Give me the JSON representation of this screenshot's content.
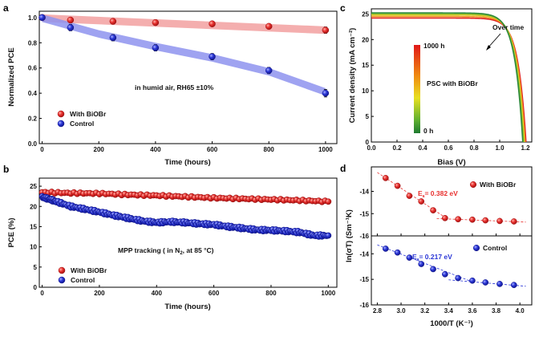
{
  "colors": {
    "red": "#e8312f",
    "blue": "#2a36d6",
    "red_band": "#f2a0a0",
    "blue_band": "#8e93ee"
  },
  "chart_data": [
    {
      "panel": "a",
      "type": "scatter",
      "xlabel": "Time (hours)",
      "ylabel": "Normalized PCE",
      "xlim": [
        -10,
        1040
      ],
      "ylim": [
        0,
        1.05
      ],
      "xticks": [
        0,
        200,
        400,
        600,
        800,
        1000
      ],
      "yticks": [
        0.0,
        0.2,
        0.4,
        0.6,
        0.8,
        1.0
      ],
      "annotation": "in humid air,  RH65 ±10%",
      "legend_position": "bottom-left",
      "series": [
        {
          "name": "With BiOBr",
          "color": "red",
          "x": [
            0,
            100,
            250,
            400,
            600,
            800,
            1000
          ],
          "y": [
            1.0,
            0.98,
            0.97,
            0.96,
            0.95,
            0.93,
            0.9
          ],
          "err": [
            0.02,
            0.02,
            0.02,
            0.02,
            0.02,
            0.02,
            0.025
          ],
          "band": {
            "x": [
              0,
              1000
            ],
            "center": [
              0.995,
              0.9
            ],
            "width": 0.06
          }
        },
        {
          "name": "Control",
          "color": "blue",
          "x": [
            0,
            100,
            250,
            400,
            600,
            800,
            1000
          ],
          "y": [
            1.0,
            0.92,
            0.84,
            0.76,
            0.69,
            0.58,
            0.4
          ],
          "err": [
            0.02,
            0.025,
            0.025,
            0.025,
            0.025,
            0.025,
            0.03
          ],
          "band": {
            "x": [
              0,
              200,
              400,
              600,
              800,
              1000
            ],
            "center": [
              0.995,
              0.87,
              0.77,
              0.68,
              0.57,
              0.41
            ],
            "width": 0.06
          }
        }
      ]
    },
    {
      "panel": "b",
      "type": "scatter",
      "xlabel": "Time (hours)",
      "ylabel": "PCE (%)",
      "xlim": [
        -10,
        1030
      ],
      "ylim": [
        0,
        27
      ],
      "xticks": [
        0,
        200,
        400,
        600,
        800,
        1000
      ],
      "yticks": [
        0,
        5,
        10,
        15,
        20,
        25
      ],
      "annotation_parts": [
        "MPP  tracking  ( in N",
        "2",
        ", at 85 °C)"
      ],
      "legend_position": "bottom-left",
      "series": [
        {
          "name": "With BiOBr",
          "color": "red",
          "x": [
            0,
            100,
            200,
            300,
            400,
            500,
            600,
            700,
            800,
            900,
            1000
          ],
          "y": [
            23.5,
            23.3,
            23.2,
            22.9,
            22.7,
            22.4,
            22.1,
            21.9,
            21.7,
            21.5,
            21.2
          ]
        },
        {
          "name": "Control",
          "color": "blue",
          "x": [
            0,
            25,
            50,
            100,
            150,
            200,
            250,
            300,
            350,
            400,
            450,
            500,
            550,
            600,
            650,
            700,
            750,
            800,
            850,
            900,
            950,
            1000
          ],
          "y": [
            22.3,
            21.8,
            21.2,
            20.0,
            19.3,
            18.6,
            17.8,
            17.1,
            16.4,
            16.0,
            16.2,
            16.0,
            15.7,
            15.5,
            15.0,
            14.6,
            14.2,
            14.1,
            13.9,
            13.6,
            12.8,
            12.8
          ]
        }
      ]
    },
    {
      "panel": "c",
      "type": "line",
      "xlabel": "Bias (V)",
      "ylabel": "Current density (mA cm⁻²)",
      "xlim": [
        0,
        1.25
      ],
      "ylim": [
        0,
        26
      ],
      "xticks": [
        0.0,
        0.2,
        0.4,
        0.6,
        0.8,
        1.0,
        1.2
      ],
      "yticks": [
        0,
        5,
        10,
        15,
        20,
        25
      ],
      "annotation": "Over time",
      "colorbar": {
        "title": "PSC with BiOBr",
        "top_label": "1000 h",
        "bottom_label": "0 h"
      },
      "series": [
        {
          "color": "#e02020",
          "jsc": 24.2,
          "voc": 1.205
        },
        {
          "color": "#f09020",
          "jsc": 24.5,
          "voc": 1.198
        },
        {
          "color": "#d8c820",
          "jsc": 24.8,
          "voc": 1.192
        },
        {
          "color": "#8cc030",
          "jsc": 25.0,
          "voc": 1.186
        },
        {
          "color": "#2e8a3a",
          "jsc": 25.2,
          "voc": 1.18
        }
      ]
    },
    {
      "panel": "d",
      "type": "scatter",
      "xlabel": "1000/T (K⁻¹)",
      "xlim": [
        2.75,
        4.1
      ],
      "xticks": [
        2.8,
        3.0,
        3.2,
        3.4,
        3.6,
        3.8,
        4.0
      ],
      "subplots": [
        {
          "name": "With BiOBr",
          "color": "red",
          "ylabel": "ln(σT) (Sm⁻¹K)",
          "ylim": [
            -16.0,
            -12.9
          ],
          "yticks": [
            -16,
            -15,
            -14
          ],
          "ea_label": "= 0.382 eV",
          "x": [
            2.87,
            2.97,
            3.07,
            3.17,
            3.27,
            3.37,
            3.48,
            3.6,
            3.71,
            3.83,
            3.95
          ],
          "y": [
            -13.4,
            -13.75,
            -14.2,
            -14.45,
            -14.85,
            -15.2,
            -15.25,
            -15.27,
            -15.3,
            -15.33,
            -15.35
          ],
          "fit1": {
            "x": [
              2.8,
              3.38
            ],
            "y": [
              -13.15,
              -15.2
            ]
          },
          "fit2": {
            "x": [
              3.3,
              4.05
            ],
            "y": [
              -15.22,
              -15.38
            ]
          }
        },
        {
          "name": "Control",
          "color": "blue",
          "ylim": [
            -16.0,
            -13.3
          ],
          "yticks": [
            -16,
            -15,
            -14
          ],
          "ea_label": "= 0.217 eV",
          "x": [
            2.87,
            2.97,
            3.07,
            3.17,
            3.27,
            3.37,
            3.48,
            3.6,
            3.71,
            3.83,
            3.95
          ],
          "y": [
            -13.8,
            -13.95,
            -14.15,
            -14.4,
            -14.6,
            -14.8,
            -14.95,
            -15.05,
            -15.12,
            -15.18,
            -15.22
          ],
          "fit1": {
            "x": [
              2.8,
              3.6
            ],
            "y": [
              -13.65,
              -15.1
            ]
          },
          "fit2": {
            "x": [
              3.4,
              4.05
            ],
            "y": [
              -15.02,
              -15.27
            ]
          }
        }
      ]
    }
  ]
}
